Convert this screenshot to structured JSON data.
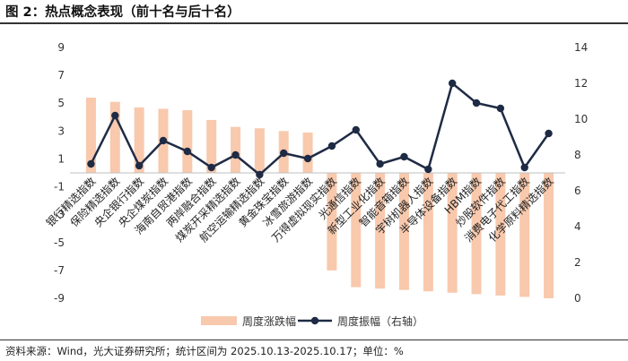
{
  "title": "图 2：热点概念表现（前十名与后十名）",
  "source": "资料来源：Wind，光大证券研究所；统计区间为 2025.10.13-2025.10.17；单位：%",
  "colors": {
    "bar": "#f8c9ad",
    "line": "#1f2b45"
  },
  "chart_data": {
    "type": "bar+line",
    "categories": [
      "银行精选指数",
      "保险精选指数",
      "央企银行指数",
      "央企煤炭指数",
      "海南自贸港指数",
      "两岸融合指数",
      "煤炭开采精选指数",
      "航空运输精选指数",
      "黄金珠宝指数",
      "冰雪旅游指数",
      "万得虚拟现实指数",
      "光通信指数",
      "新型工业化指数",
      "智能音箱指数",
      "宇树机器人指数",
      "半导体设备指数",
      "HBM指数",
      "炒股软件指数",
      "消费电子代工指数",
      "化学原料精选指数"
    ],
    "series": [
      {
        "name": "周度涨跌幅",
        "type": "bar",
        "axis": "left",
        "values": [
          5.4,
          5.1,
          4.7,
          4.6,
          4.5,
          3.8,
          3.3,
          3.2,
          3.0,
          2.9,
          -7.0,
          -8.2,
          -8.3,
          -8.4,
          -8.5,
          -8.6,
          -8.7,
          -8.8,
          -8.9,
          -9.0
        ]
      },
      {
        "name": "周度振幅（右轴）",
        "type": "line",
        "axis": "right",
        "values": [
          7.5,
          10.2,
          7.4,
          8.8,
          8.2,
          7.3,
          8.0,
          6.9,
          8.1,
          7.8,
          8.5,
          9.4,
          7.5,
          7.9,
          7.2,
          12.0,
          10.9,
          10.6,
          7.3,
          9.2
        ]
      }
    ],
    "y_left": {
      "min": -9,
      "max": 9,
      "ticks": [
        9,
        7,
        5,
        3,
        1,
        -1,
        -3,
        -5,
        -7,
        -9
      ]
    },
    "y_right": {
      "min": 0,
      "max": 14,
      "ticks": [
        14,
        12,
        10,
        8,
        6,
        4,
        2,
        0
      ]
    },
    "legend_position": "bottom"
  }
}
